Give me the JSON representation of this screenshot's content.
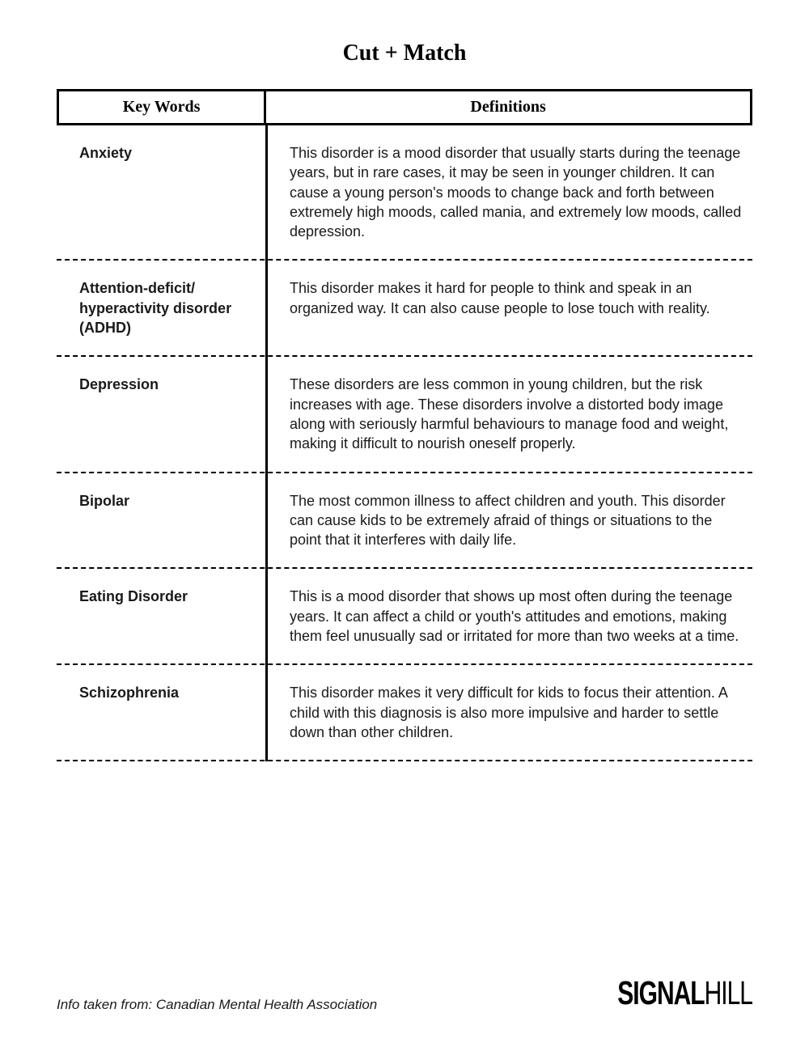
{
  "title": "Cut + Match",
  "headers": {
    "key": "Key Words",
    "def": "Definitions"
  },
  "rows": [
    {
      "key": "Anxiety",
      "def": "This disorder is a mood disorder that usually starts during the teenage years, but in rare cases, it may be seen in younger children. It can cause a young person's moods to change back and forth between extremely high moods, called mania, and extremely low moods, called depression."
    },
    {
      "key": "Attention-deficit/ hyperactivity disorder (ADHD)",
      "def": "This disorder makes it hard for people to think and speak in an organized way. It can also cause people to lose touch with reality."
    },
    {
      "key": "Depression",
      "def": "These disorders are less common in young children, but the risk increases with age. These disorders involve a distorted body image along with seriously harmful behaviours to manage food and weight, making it difficult to nourish oneself properly."
    },
    {
      "key": "Bipolar",
      "def": "The most common illness to affect children and youth. This disorder can cause kids to be extremely afraid of things or situations to the point that it interferes with daily life."
    },
    {
      "key": "Eating Disorder",
      "def": "This is a mood disorder that shows up most often during the teenage years. It can affect a child or youth's attitudes and emotions, making them feel unusually sad or irritated for more than two weeks at a time."
    },
    {
      "key": "Schizophrenia",
      "def": "This disorder makes it very difficult for kids to focus their attention. A child with this diagnosis is also more impulsive and harder to settle down than other children."
    }
  ],
  "source": "Info taken from: Canadian Mental Health Association",
  "logo": {
    "bold": "SIGNAL",
    "thin": "HILL"
  },
  "style": {
    "page_bg": "#ffffff",
    "text_color": "#1a1a1a",
    "border_color": "#000000",
    "dash_color": "#000000",
    "title_fontsize": 28,
    "header_fontsize": 20,
    "body_fontsize": 18,
    "key_column_width_pct": 30,
    "def_column_width_pct": 70
  }
}
